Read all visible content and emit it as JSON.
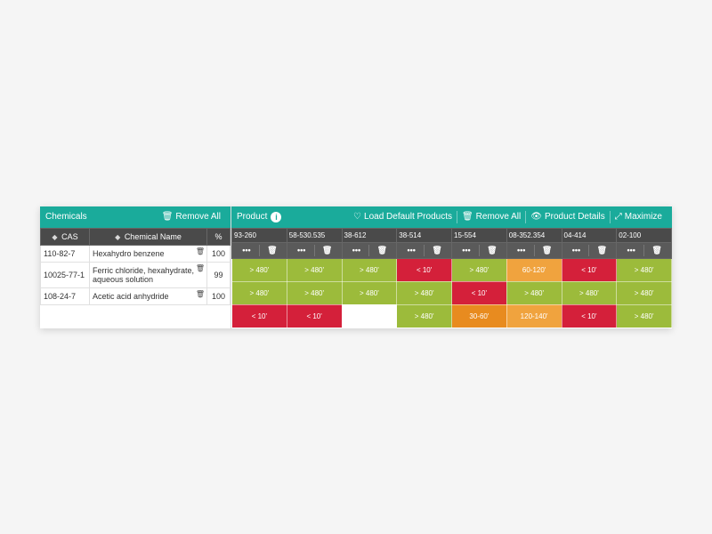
{
  "colors": {
    "teal": "#1aab9b",
    "dark": "#4a4a4a",
    "green": "#9cbb3b",
    "red": "#d4203a",
    "orange": "#f0a33e",
    "amber": "#e88b1f",
    "white": "#ffffff"
  },
  "chemicals": {
    "title": "Chemicals",
    "removeAll": "Remove All",
    "columns": {
      "cas": "CAS",
      "name": "Chemical Name",
      "pct": "%"
    },
    "rows": [
      {
        "cas": "110-82-7",
        "name": "Hexahydro benzene",
        "pct": "100"
      },
      {
        "cas": "10025-77-1",
        "name": "Ferric chloride, hexahydrate, aqueous solution",
        "pct": "99"
      },
      {
        "cas": "108-24-7",
        "name": "Acetic acid anhydride",
        "pct": "100"
      }
    ]
  },
  "products": {
    "title": "Product",
    "actions": {
      "loadDefault": "Load Default Products",
      "removeAll": "Remove All",
      "details": "Product Details",
      "maximize": "Maximize"
    },
    "columns": [
      {
        "code": "93-260"
      },
      {
        "code": "58-530.535"
      },
      {
        "code": "38-612"
      },
      {
        "code": "38-514"
      },
      {
        "code": "15-554"
      },
      {
        "code": "08-352.354"
      },
      {
        "code": "04-414"
      },
      {
        "code": "02-100"
      }
    ],
    "cells": [
      [
        {
          "v": "> 480'",
          "c": "green"
        },
        {
          "v": "> 480'",
          "c": "green"
        },
        {
          "v": "> 480'",
          "c": "green"
        },
        {
          "v": "< 10'",
          "c": "red"
        },
        {
          "v": "> 480'",
          "c": "green"
        },
        {
          "v": "60-120'",
          "c": "orange"
        },
        {
          "v": "< 10'",
          "c": "red"
        },
        {
          "v": "> 480'",
          "c": "green"
        }
      ],
      [
        {
          "v": "> 480'",
          "c": "green"
        },
        {
          "v": "> 480'",
          "c": "green"
        },
        {
          "v": "> 480'",
          "c": "green"
        },
        {
          "v": "> 480'",
          "c": "green"
        },
        {
          "v": "< 10'",
          "c": "red"
        },
        {
          "v": "> 480'",
          "c": "green"
        },
        {
          "v": "> 480'",
          "c": "green"
        },
        {
          "v": "> 480'",
          "c": "green"
        }
      ],
      [
        {
          "v": "< 10'",
          "c": "red"
        },
        {
          "v": "< 10'",
          "c": "red"
        },
        {
          "v": "",
          "c": "blank"
        },
        {
          "v": "> 480'",
          "c": "green"
        },
        {
          "v": "30-60'",
          "c": "amber"
        },
        {
          "v": "120-140'",
          "c": "orange"
        },
        {
          "v": "< 10'",
          "c": "red"
        },
        {
          "v": "> 480'",
          "c": "green"
        }
      ]
    ]
  }
}
